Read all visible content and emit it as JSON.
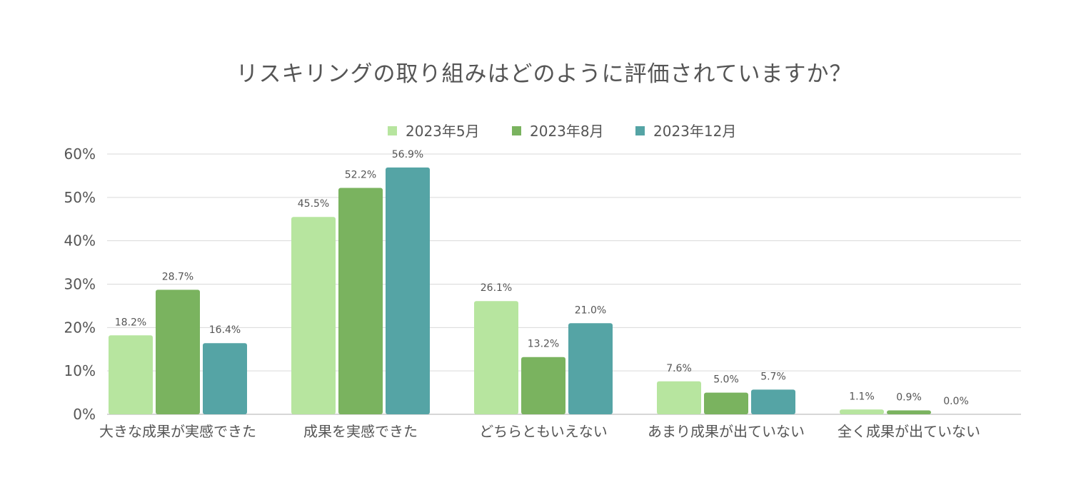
{
  "chart_data": {
    "type": "bar",
    "title": "リスキリングの取り組みはどのように評価されていますか？",
    "xlabel": "",
    "ylabel": "",
    "ylim": [
      0,
      60
    ],
    "yticks": [
      0,
      10,
      20,
      30,
      40,
      50,
      60
    ],
    "ytick_labels": [
      "0%",
      "10%",
      "20%",
      "30%",
      "40%",
      "50%",
      "60%"
    ],
    "value_suffix": "%",
    "grid": true,
    "legend_position": "top-center",
    "categories": [
      "大きな成果が実感できた",
      "成果を実感できた",
      "どちらともいえない",
      "あまり成果が出ていない",
      "全く成果が出ていない"
    ],
    "series": [
      {
        "name": "2023年5月",
        "color": "#b7e59f",
        "values": [
          18.2,
          45.5,
          26.1,
          7.6,
          1.1
        ]
      },
      {
        "name": "2023年8月",
        "color": "#7ab35f",
        "values": [
          28.7,
          52.2,
          13.2,
          5.0,
          0.9
        ]
      },
      {
        "name": "2023年12月",
        "color": "#55a4a5",
        "values": [
          16.4,
          56.9,
          21.0,
          5.7,
          0.0
        ]
      }
    ]
  }
}
